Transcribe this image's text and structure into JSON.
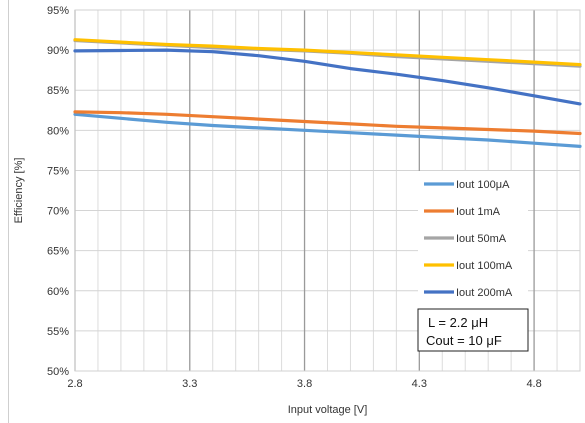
{
  "chart_data": {
    "type": "line",
    "xlabel": "Input voltage [V]",
    "ylabel": "Efficiency [%]",
    "xlim": [
      2.8,
      5.0
    ],
    "ylim": [
      50,
      95
    ],
    "x_ticks": [
      "2.8",
      "3.3",
      "3.8",
      "4.3",
      "4.8"
    ],
    "y_ticks": [
      "50%",
      "55%",
      "60%",
      "65%",
      "70%",
      "75%",
      "80%",
      "85%",
      "90%",
      "95%"
    ],
    "grid": true,
    "legend_position": "right",
    "x": [
      2.8,
      3.0,
      3.2,
      3.4,
      3.6,
      3.8,
      4.0,
      4.2,
      4.4,
      4.6,
      4.8,
      5.0
    ],
    "series": [
      {
        "name": "Iout 100μA",
        "color": "#5b9bd5",
        "values": [
          82.0,
          81.5,
          81.0,
          80.6,
          80.3,
          80.0,
          79.7,
          79.4,
          79.1,
          78.8,
          78.4,
          78.0
        ]
      },
      {
        "name": "Iout 1mA",
        "color": "#ed7d31",
        "values": [
          82.3,
          82.2,
          82.0,
          81.7,
          81.4,
          81.1,
          80.8,
          80.5,
          80.3,
          80.1,
          79.9,
          79.6
        ]
      },
      {
        "name": "Iout 50mA",
        "color": "#a5a5a5",
        "values": [
          91.2,
          90.9,
          90.6,
          90.3,
          90.1,
          89.9,
          89.6,
          89.2,
          88.9,
          88.6,
          88.3,
          88.0
        ]
      },
      {
        "name": "Iout 100mA",
        "color": "#ffc000",
        "values": [
          91.3,
          91.0,
          90.7,
          90.5,
          90.2,
          90.0,
          89.7,
          89.4,
          89.1,
          88.8,
          88.5,
          88.2
        ]
      },
      {
        "name": "Iout 200mA",
        "color": "#4472c4",
        "values": [
          89.9,
          89.95,
          90.0,
          89.8,
          89.3,
          88.6,
          87.7,
          87.0,
          86.2,
          85.3,
          84.3,
          83.3
        ]
      }
    ],
    "annotations": [
      "L = 2.2 μH",
      "Cout = 10 μF"
    ]
  }
}
